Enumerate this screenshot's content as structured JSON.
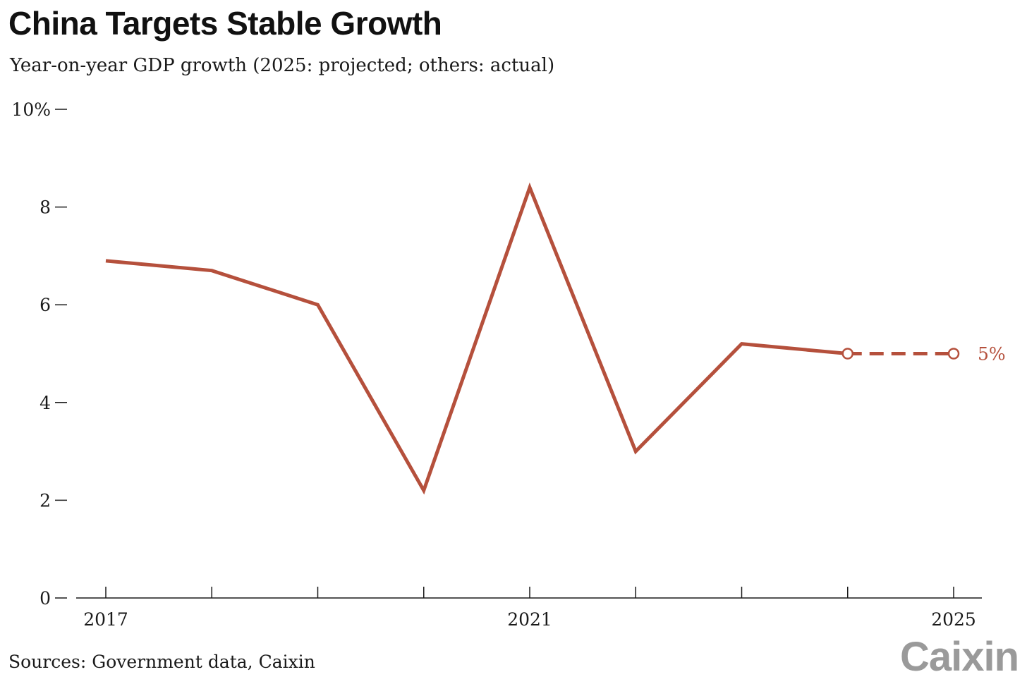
{
  "title": "China Targets Stable Growth",
  "subtitle": "Year-on-year GDP growth (2025: projected; others: actual)",
  "source": "Sources: Government data, Caixin",
  "logo_text": "Caixin",
  "chart_data": {
    "type": "line",
    "x": [
      2017,
      2018,
      2019,
      2020,
      2021,
      2022,
      2023,
      2024,
      2025
    ],
    "series": [
      {
        "values": [
          6.9,
          6.7,
          6.0,
          2.2,
          8.4,
          3.0,
          5.2,
          5.0,
          5.0
        ],
        "projected_from_index": 7
      }
    ],
    "xlim": [
      2017,
      2025
    ],
    "ylim": [
      0,
      10
    ],
    "yticks": [
      0,
      2,
      4,
      6,
      8,
      10
    ],
    "ytick_labels": [
      "0",
      "2",
      "4",
      "6",
      "8",
      "10%"
    ],
    "xtick_labels": [
      {
        "x": 2017,
        "label": "2017"
      },
      {
        "x": 2021,
        "label": "2021"
      },
      {
        "x": 2025,
        "label": "2025"
      }
    ],
    "end_label": "5%",
    "line_color": "#b5503c",
    "grid": false
  }
}
